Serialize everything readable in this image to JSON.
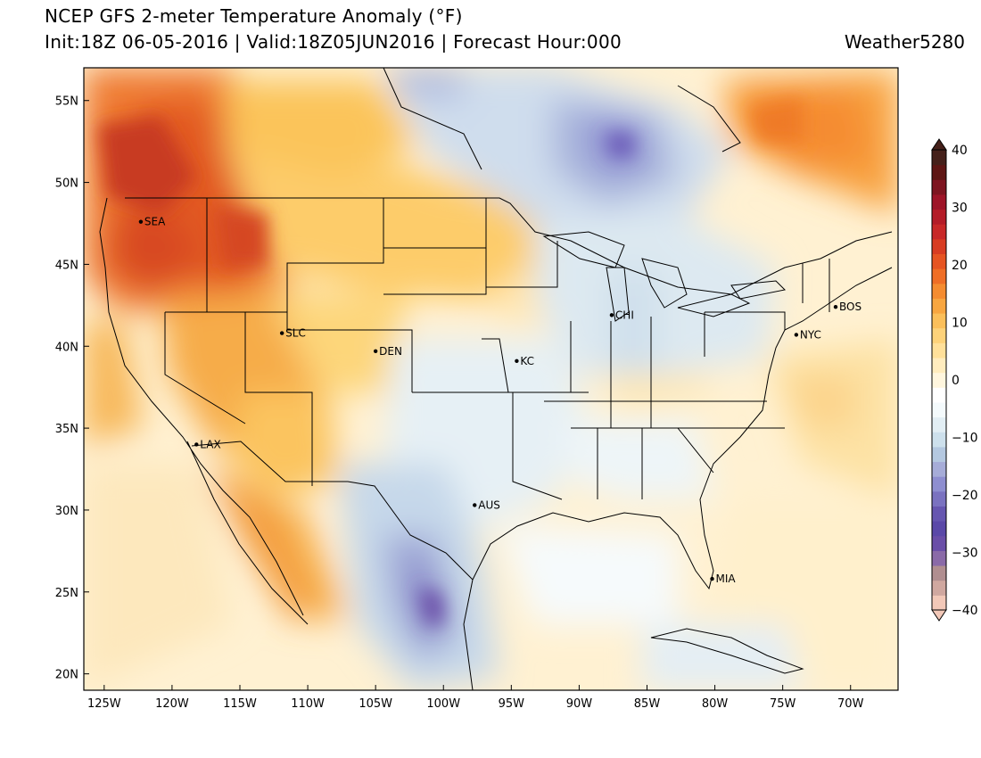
{
  "header": {
    "title": "NCEP GFS 2-meter Temperature Anomaly (°F)",
    "subtitle": "Init:18Z 06-05-2016 | Valid:18Z05JUN2016 | Forecast Hour:000",
    "brand": "Weather5280"
  },
  "map": {
    "lat_ticks": [
      {
        "value": 55,
        "label": "55N"
      },
      {
        "value": 50,
        "label": "50N"
      },
      {
        "value": 45,
        "label": "45N"
      },
      {
        "value": 40,
        "label": "40N"
      },
      {
        "value": 35,
        "label": "35N"
      },
      {
        "value": 30,
        "label": "30N"
      },
      {
        "value": 25,
        "label": "25N"
      },
      {
        "value": 20,
        "label": "20N"
      }
    ],
    "lon_ticks": [
      {
        "value": -125,
        "label": "125W"
      },
      {
        "value": -120,
        "label": "120W"
      },
      {
        "value": -115,
        "label": "115W"
      },
      {
        "value": -110,
        "label": "110W"
      },
      {
        "value": -105,
        "label": "105W"
      },
      {
        "value": -100,
        "label": "100W"
      },
      {
        "value": -95,
        "label": "95W"
      },
      {
        "value": -90,
        "label": "90W"
      },
      {
        "value": -85,
        "label": "85W"
      },
      {
        "value": -80,
        "label": "80W"
      },
      {
        "value": -75,
        "label": "75W"
      },
      {
        "value": -70,
        "label": "70W"
      }
    ],
    "cities": [
      {
        "name": "SEA",
        "lat": 47.6,
        "lon": -122.3
      },
      {
        "name": "SLC",
        "lat": 40.8,
        "lon": -111.9
      },
      {
        "name": "DEN",
        "lat": 39.7,
        "lon": -105.0
      },
      {
        "name": "KC",
        "lat": 39.1,
        "lon": -94.6
      },
      {
        "name": "CHI",
        "lat": 41.9,
        "lon": -87.6
      },
      {
        "name": "NYC",
        "lat": 40.7,
        "lon": -74.0
      },
      {
        "name": "BOS",
        "lat": 42.4,
        "lon": -71.1
      },
      {
        "name": "LAX",
        "lat": 34.0,
        "lon": -118.2
      },
      {
        "name": "AUS",
        "lat": 30.3,
        "lon": -97.7
      },
      {
        "name": "MIA",
        "lat": 25.8,
        "lon": -80.2
      }
    ],
    "extent": {
      "lon_min": -126.5,
      "lon_max": -66.5,
      "lat_min": 19.0,
      "lat_max": 57.0
    }
  },
  "colorbar": {
    "labels": [
      {
        "value": 40,
        "label": "40"
      },
      {
        "value": 30,
        "label": "30"
      },
      {
        "value": 20,
        "label": "20"
      },
      {
        "value": 10,
        "label": "10"
      },
      {
        "value": 0,
        "label": "0"
      },
      {
        "value": -10,
        "label": "−10"
      },
      {
        "value": -20,
        "label": "−20"
      },
      {
        "value": -30,
        "label": "−30"
      },
      {
        "value": -40,
        "label": "−40"
      }
    ],
    "colors": [
      "#f2c8b8",
      "#d0a8a0",
      "#b08e90",
      "#8a6aa8",
      "#6a4ea8",
      "#5a48a8",
      "#6656b0",
      "#7a72c0",
      "#8e8ed0",
      "#a6acd8",
      "#b4c8e0",
      "#cde0ec",
      "#e2eef4",
      "#f4fafc",
      "#ffffff",
      "#fff6de",
      "#ffecbe",
      "#ffe09a",
      "#fdd27a",
      "#fbbf5a",
      "#f8a640",
      "#f58c30",
      "#ef6e26",
      "#e65422",
      "#d83c22",
      "#c82828",
      "#b41c28",
      "#9e1428",
      "#7e1420",
      "#5e1614",
      "#45201a"
    ]
  },
  "anomaly_regions": [
    {
      "name": "pacific-northwest-heat",
      "anomaly_f": 18
    },
    {
      "name": "northern-rockies-heat",
      "anomaly_f": 20
    },
    {
      "name": "great-basin-warm",
      "anomaly_f": 10
    },
    {
      "name": "southwest-warm",
      "anomaly_f": 8
    },
    {
      "name": "baja-warm",
      "anomaly_f": 16
    },
    {
      "name": "eastern-canada-warm",
      "anomaly_f": 14
    },
    {
      "name": "northern-plains-warm",
      "anomaly_f": 6
    },
    {
      "name": "hudson-bay-cool",
      "anomaly_f": -12
    },
    {
      "name": "plains-cool",
      "anomaly_f": -4
    },
    {
      "name": "mexico-cool",
      "anomaly_f": -10
    },
    {
      "name": "sierra-madre-cold",
      "anomaly_f": -18
    },
    {
      "name": "great-lakes-cool",
      "anomaly_f": -6
    },
    {
      "name": "atlantic-warm",
      "anomaly_f": 6
    }
  ]
}
